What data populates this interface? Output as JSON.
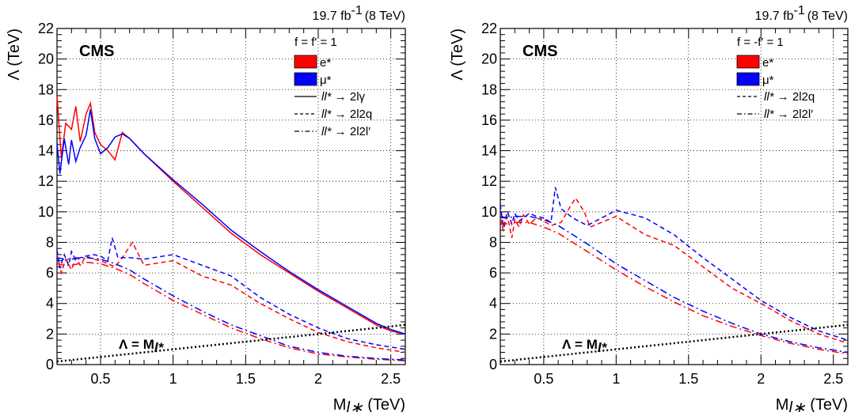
{
  "chart_data": [
    {
      "type": "line",
      "lumi": "19.7 fb",
      "lumi_sup": "-1",
      "energy": "(8 TeV)",
      "experiment": "CMS",
      "coupling_label": "f = f' = 1",
      "xlabel_main": "M",
      "xlabel_sub": "l∗",
      "xlabel_unit": " (TeV)",
      "ylabel": "Λ (TeV)",
      "xlim": [
        0.2,
        2.6
      ],
      "ylim": [
        0,
        22
      ],
      "xticks": [
        "0.5",
        "1",
        "1.5",
        "2",
        "2.5"
      ],
      "yticks": [
        "0",
        "2",
        "4",
        "6",
        "8",
        "10",
        "12",
        "14",
        "16",
        "18",
        "20",
        "22"
      ],
      "grid": true,
      "legend_position": "top-right",
      "legend_colors": [
        {
          "label": "e*",
          "color": "#ff0000"
        },
        {
          "label": "μ*",
          "color": "#0000ff"
        }
      ],
      "legend_styles": [
        {
          "prefix": "ll*",
          "label": " → 2lγ",
          "dash": "solid"
        },
        {
          "prefix": "ll*",
          "label": " → 2l2q",
          "dash": "dashed"
        },
        {
          "prefix": "ll*",
          "label": " → 2l2l′",
          "dash": "dashdot"
        }
      ],
      "diagonal_label": "Λ = M",
      "diagonal_label_sub": "l*",
      "series": [
        {
          "particle": "e*",
          "channel": "2lγ",
          "color": "#ff0000",
          "dash": "solid",
          "x": [
            0.2,
            0.23,
            0.26,
            0.3,
            0.33,
            0.36,
            0.4,
            0.43,
            0.46,
            0.5,
            0.55,
            0.6,
            0.65,
            0.7,
            0.8,
            1.0,
            1.2,
            1.4,
            1.6,
            1.8,
            2.0,
            2.2,
            2.4,
            2.5,
            2.6
          ],
          "y": [
            17.6,
            13.5,
            15.8,
            15.4,
            16.9,
            14.6,
            16.4,
            17.1,
            15.2,
            14.4,
            14.0,
            13.4,
            15.2,
            14.8,
            13.8,
            12.0,
            10.3,
            8.6,
            7.2,
            6.0,
            4.8,
            3.7,
            2.6,
            2.2,
            2.0
          ],
          "name": ""
        },
        {
          "particle": "μ*",
          "channel": "2lγ",
          "color": "#0000ff",
          "dash": "solid",
          "x": [
            0.2,
            0.22,
            0.25,
            0.28,
            0.3,
            0.33,
            0.36,
            0.4,
            0.43,
            0.46,
            0.5,
            0.55,
            0.6,
            0.65,
            0.7,
            0.8,
            1.0,
            1.2,
            1.4,
            1.6,
            1.8,
            2.0,
            2.2,
            2.4,
            2.5,
            2.6
          ],
          "y": [
            14.5,
            12.5,
            14.8,
            13.1,
            14.7,
            13.3,
            14.2,
            15.0,
            16.7,
            14.8,
            13.8,
            14.2,
            14.9,
            15.1,
            14.8,
            13.8,
            12.1,
            10.5,
            8.8,
            7.4,
            6.1,
            4.9,
            3.8,
            2.7,
            2.3,
            2.0
          ],
          "name": ""
        },
        {
          "particle": "e*",
          "channel": "2l2q",
          "color": "#ff0000",
          "dash": "dashed",
          "x": [
            0.2,
            0.23,
            0.26,
            0.3,
            0.33,
            0.36,
            0.4,
            0.45,
            0.5,
            0.55,
            0.6,
            0.65,
            0.72,
            0.8,
            1.0,
            1.2,
            1.4,
            1.6,
            1.8,
            2.0,
            2.2,
            2.4,
            2.6
          ],
          "y": [
            7.2,
            6.0,
            6.9,
            6.2,
            7.0,
            6.5,
            7.1,
            6.9,
            6.8,
            6.6,
            6.4,
            7.0,
            8.0,
            6.5,
            6.8,
            5.8,
            5.2,
            4.0,
            3.0,
            2.1,
            1.5,
            1.1,
            0.8
          ],
          "name": ""
        },
        {
          "particle": "μ*",
          "channel": "2l2q",
          "color": "#0000ff",
          "dash": "dashed",
          "x": [
            0.2,
            0.22,
            0.25,
            0.28,
            0.3,
            0.33,
            0.36,
            0.4,
            0.45,
            0.5,
            0.55,
            0.58,
            0.62,
            0.7,
            0.8,
            1.0,
            1.2,
            1.4,
            1.6,
            1.8,
            2.0,
            2.2,
            2.4,
            2.6
          ],
          "y": [
            7.5,
            6.3,
            7.2,
            6.5,
            7.4,
            6.8,
            7.0,
            7.1,
            7.2,
            7.1,
            6.8,
            8.3,
            7.0,
            7.0,
            6.9,
            7.2,
            6.5,
            5.8,
            4.4,
            3.3,
            2.4,
            1.7,
            1.3,
            1.0
          ],
          "name": ""
        },
        {
          "particle": "e*",
          "channel": "2l2l'",
          "color": "#ff0000",
          "dash": "dashdot",
          "x": [
            0.2,
            0.25,
            0.3,
            0.35,
            0.4,
            0.5,
            0.6,
            0.7,
            0.8,
            1.0,
            1.2,
            1.4,
            1.6,
            1.8,
            2.0,
            2.2,
            2.4,
            2.6
          ],
          "y": [
            6.6,
            6.5,
            6.5,
            6.6,
            6.7,
            6.6,
            6.3,
            5.9,
            5.3,
            4.2,
            3.3,
            2.4,
            1.7,
            1.1,
            0.7,
            0.5,
            0.35,
            0.25
          ],
          "name": ""
        },
        {
          "particle": "μ*",
          "channel": "2l2l'",
          "color": "#0000ff",
          "dash": "dashdot",
          "x": [
            0.2,
            0.25,
            0.3,
            0.35,
            0.4,
            0.5,
            0.6,
            0.7,
            0.8,
            1.0,
            1.2,
            1.4,
            1.6,
            1.8,
            2.0,
            2.2,
            2.4,
            2.6
          ],
          "y": [
            7.0,
            6.9,
            6.9,
            7.0,
            7.0,
            6.9,
            6.6,
            6.2,
            5.6,
            4.5,
            3.5,
            2.6,
            1.9,
            1.2,
            0.8,
            0.55,
            0.4,
            0.3
          ],
          "name": ""
        }
      ]
    },
    {
      "type": "line",
      "lumi": "19.7 fb",
      "lumi_sup": "-1",
      "energy": "(8 TeV)",
      "experiment": "CMS",
      "coupling_label": "f = -f' = 1",
      "xlabel_main": "M",
      "xlabel_sub": "l∗",
      "xlabel_unit": " (TeV)",
      "ylabel": "Λ (TeV)",
      "xlim": [
        0.2,
        2.6
      ],
      "ylim": [
        0,
        22
      ],
      "xticks": [
        "0.5",
        "1",
        "1.5",
        "2",
        "2.5"
      ],
      "yticks": [
        "0",
        "2",
        "4",
        "6",
        "8",
        "10",
        "12",
        "14",
        "16",
        "18",
        "20",
        "22"
      ],
      "grid": true,
      "legend_position": "top-right",
      "legend_colors": [
        {
          "label": "e*",
          "color": "#ff0000"
        },
        {
          "label": "μ*",
          "color": "#0000ff"
        }
      ],
      "legend_styles": [
        {
          "prefix": "ll*",
          "label": " → 2l2q",
          "dash": "dashed"
        },
        {
          "prefix": "ll*",
          "label": " → 2l2l′",
          "dash": "dashdot"
        }
      ],
      "diagonal_label": "Λ = M",
      "diagonal_label_sub": "l*",
      "series": [
        {
          "particle": "e*",
          "channel": "2l2q",
          "color": "#ff0000",
          "dash": "dashed",
          "x": [
            0.2,
            0.22,
            0.25,
            0.28,
            0.3,
            0.33,
            0.36,
            0.4,
            0.45,
            0.5,
            0.55,
            0.62,
            0.68,
            0.72,
            0.78,
            0.82,
            1.0,
            1.2,
            1.4,
            1.6,
            1.8,
            2.0,
            2.2,
            2.4,
            2.6
          ],
          "y": [
            9.6,
            8.8,
            9.7,
            8.3,
            9.5,
            9.0,
            9.8,
            9.2,
            9.6,
            9.4,
            9.1,
            9.3,
            10.3,
            10.9,
            10.0,
            9.0,
            9.7,
            8.5,
            7.8,
            6.4,
            5.0,
            4.0,
            2.9,
            2.0,
            1.4
          ],
          "name": ""
        },
        {
          "particle": "μ*",
          "channel": "2l2q",
          "color": "#0000ff",
          "dash": "dashed",
          "x": [
            0.2,
            0.22,
            0.25,
            0.28,
            0.3,
            0.33,
            0.36,
            0.4,
            0.45,
            0.5,
            0.55,
            0.58,
            0.62,
            0.7,
            0.8,
            1.0,
            1.2,
            1.4,
            1.6,
            1.8,
            2.0,
            2.2,
            2.4,
            2.6
          ],
          "y": [
            10.5,
            9.0,
            10.0,
            9.2,
            9.9,
            9.4,
            9.6,
            9.9,
            9.7,
            9.6,
            9.3,
            11.6,
            10.2,
            9.6,
            9.1,
            10.1,
            9.6,
            8.5,
            7.0,
            5.6,
            4.2,
            3.1,
            2.2,
            1.6
          ],
          "name": ""
        },
        {
          "particle": "e*",
          "channel": "2l2l'",
          "color": "#ff0000",
          "dash": "dashdot",
          "x": [
            0.2,
            0.25,
            0.3,
            0.35,
            0.4,
            0.5,
            0.6,
            0.7,
            0.8,
            1.0,
            1.2,
            1.4,
            1.6,
            1.8,
            2.0,
            2.2,
            2.4,
            2.6
          ],
          "y": [
            9.3,
            9.2,
            9.3,
            9.3,
            9.3,
            9.0,
            8.6,
            8.0,
            7.4,
            6.2,
            5.1,
            4.1,
            3.2,
            2.5,
            1.9,
            1.4,
            1.0,
            0.7
          ],
          "name": ""
        },
        {
          "particle": "μ*",
          "channel": "2l2l'",
          "color": "#0000ff",
          "dash": "dashdot",
          "x": [
            0.2,
            0.25,
            0.3,
            0.35,
            0.4,
            0.5,
            0.6,
            0.7,
            0.8,
            1.0,
            1.2,
            1.4,
            1.6,
            1.8,
            2.0,
            2.2,
            2.4,
            2.6
          ],
          "y": [
            9.7,
            9.6,
            9.7,
            9.7,
            9.7,
            9.5,
            9.1,
            8.5,
            7.9,
            6.6,
            5.5,
            4.4,
            3.5,
            2.7,
            2.0,
            1.5,
            1.1,
            0.8
          ],
          "name": ""
        }
      ]
    }
  ]
}
